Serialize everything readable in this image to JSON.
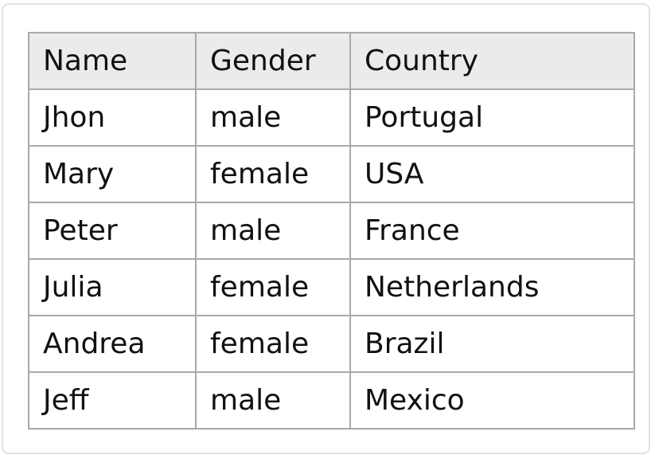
{
  "table": {
    "columns": [
      "Name",
      "Gender",
      "Country"
    ],
    "rows": [
      [
        "Jhon",
        "male",
        "Portugal"
      ],
      [
        "Mary",
        "female",
        "USA"
      ],
      [
        "Peter",
        "male",
        "France"
      ],
      [
        "Julia",
        "female",
        "Netherlands"
      ],
      [
        "Andrea",
        "female",
        "Brazil"
      ],
      [
        "Jeff",
        "male",
        "Mexico"
      ]
    ]
  },
  "colors": {
    "header_background": "#ebebeb",
    "border": "#a9a9a9",
    "text": "#111111"
  }
}
